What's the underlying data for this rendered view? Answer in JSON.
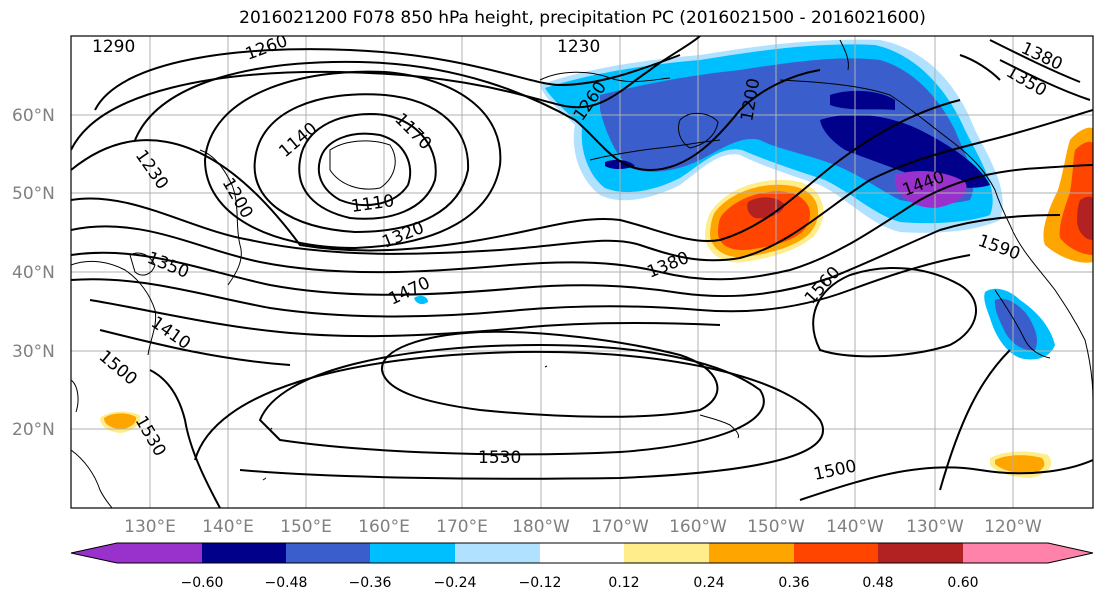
{
  "title": "2016021200 F078 850 hPa height, precipitation PC (2016021500 - 2016021600)",
  "map": {
    "lon_labels": [
      "130°E",
      "140°E",
      "150°E",
      "160°E",
      "170°E",
      "180°W",
      "170°W",
      "160°W",
      "150°W",
      "140°W",
      "130°W",
      "120°W"
    ],
    "lat_labels": [
      "60°N",
      "50°N",
      "40°N",
      "30°N",
      "20°N"
    ],
    "contour_labels": [
      "1290",
      "1260",
      "1230",
      "1380",
      "1350",
      "1140",
      "1170",
      "1230",
      "1200",
      "1110",
      "1260",
      "1200",
      "1440",
      "1320",
      "1350",
      "1470",
      "1410",
      "1500",
      "1530",
      "1380",
      "1560",
      "1590",
      "1530",
      "1500"
    ]
  },
  "colorbar": {
    "colors": [
      "#9932CC",
      "#00008B",
      "#3A5FCD",
      "#00BFFF",
      "#B0E2FF",
      "#FFFFFF",
      "#FFEC8B",
      "#FFA500",
      "#FF4500",
      "#B22222",
      "#FF82AB"
    ],
    "tick_labels": [
      "−0.60",
      "−0.48",
      "−0.36",
      "−0.24",
      "−0.12",
      "0.12",
      "0.24",
      "0.36",
      "0.48",
      "0.60"
    ]
  }
}
